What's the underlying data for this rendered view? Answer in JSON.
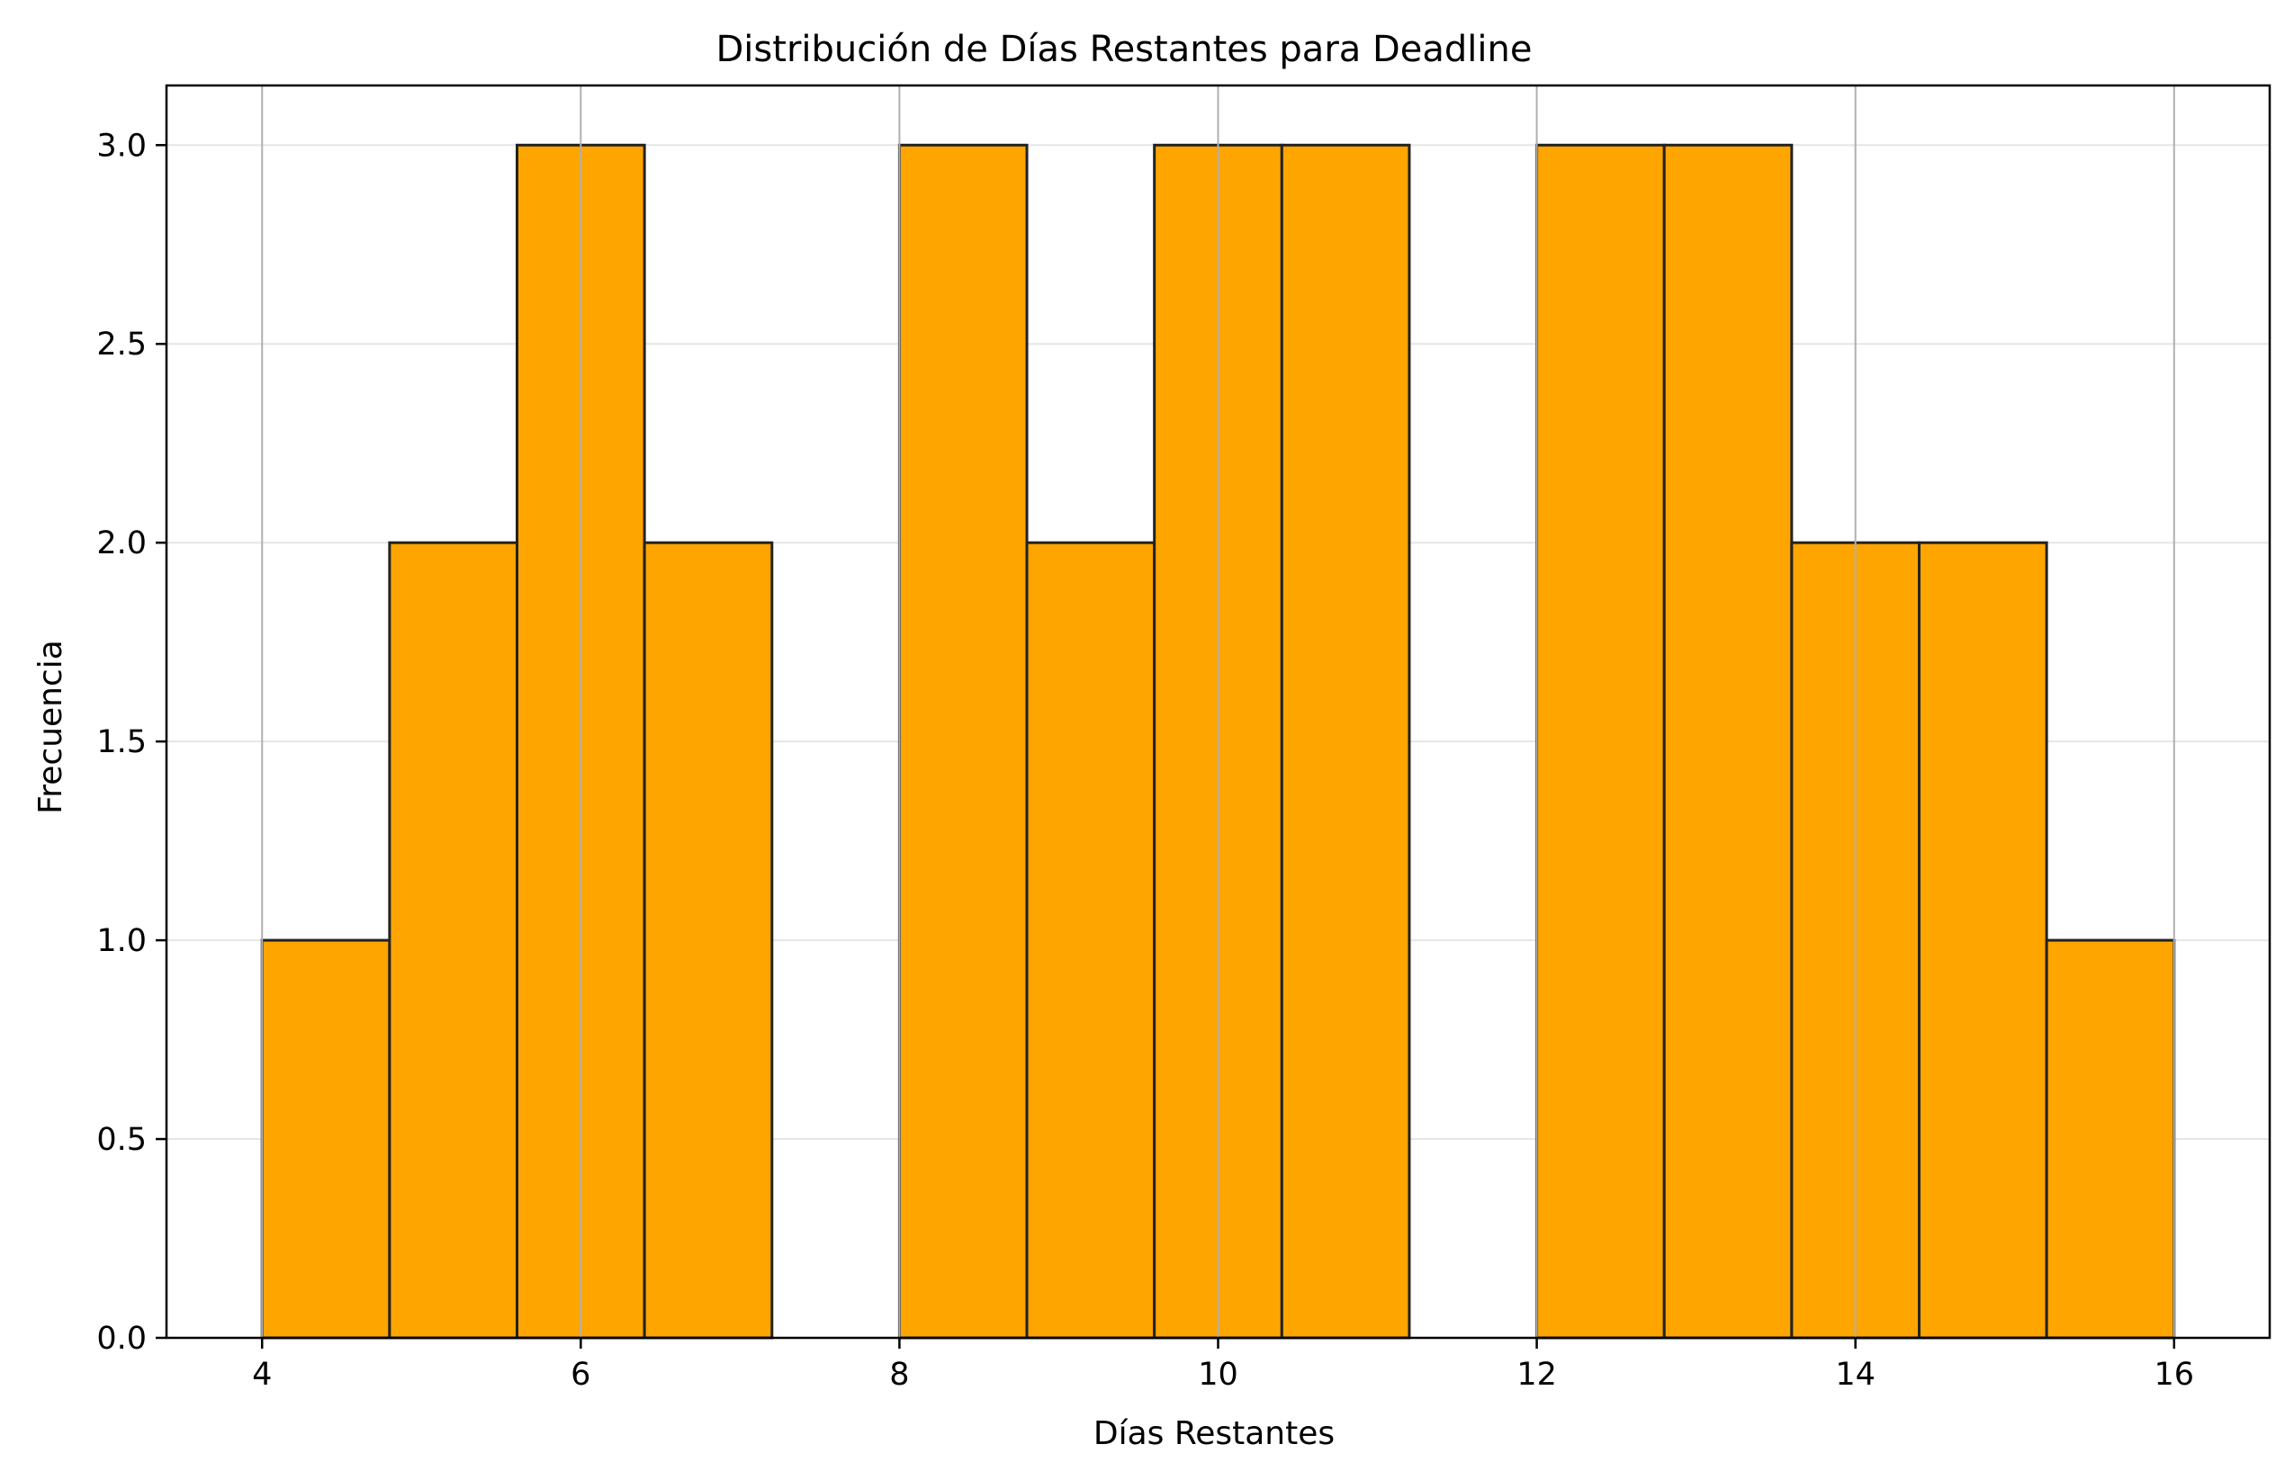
{
  "chart_data": {
    "type": "bar",
    "title": "Distribución de Días Restantes para Deadline",
    "xlabel": "Días Restantes",
    "ylabel": "Frecuencia",
    "xlim": [
      3.4,
      16.6
    ],
    "ylim": [
      0,
      3.15
    ],
    "bin_edges": [
      4.0,
      4.8,
      5.6,
      6.4,
      7.2,
      8.0,
      8.8,
      9.6,
      10.4,
      11.2,
      12.0,
      12.8,
      13.6,
      14.4,
      15.2,
      16.0
    ],
    "counts": [
      1,
      2,
      3,
      2,
      0,
      3,
      2,
      3,
      3,
      0,
      3,
      3,
      2,
      2,
      1
    ],
    "xticks": [
      4,
      6,
      8,
      10,
      12,
      14,
      16
    ],
    "xtick_labels": [
      "4",
      "6",
      "8",
      "10",
      "12",
      "14",
      "16"
    ],
    "yticks": [
      0,
      0.5,
      1,
      1.5,
      2,
      2.5,
      3
    ],
    "ytick_labels": [
      "0.0",
      "0.5",
      "1.0",
      "1.5",
      "2.0",
      "2.5",
      "3.0"
    ],
    "bar_color": "#ffa500",
    "edge_color": "#222222",
    "grid": true
  }
}
